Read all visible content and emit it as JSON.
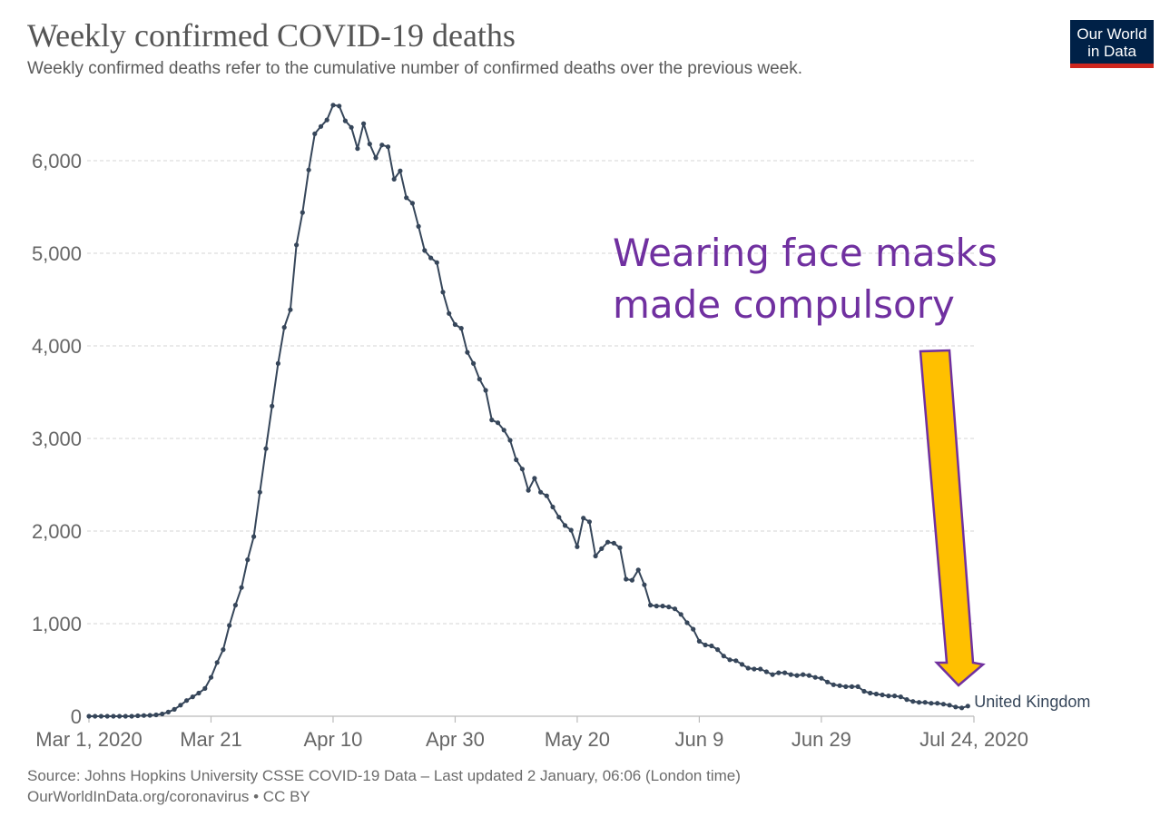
{
  "header": {
    "title": "Weekly confirmed COVID-19 deaths",
    "subtitle": "Weekly confirmed deaths refer to the cumulative number of confirmed deaths over the previous week."
  },
  "logo": {
    "line1": "Our World",
    "line2": "in Data"
  },
  "annotation": {
    "line1": "Wearing face masks",
    "line2": "made compulsory"
  },
  "footer": {
    "source": "Source: Johns Hopkins University CSSE COVID-19 Data – Last updated 2 January, 06:06 (London time)",
    "url": "OurWorldInData.org/coronavirus • CC BY"
  },
  "colors": {
    "line": "#36465a",
    "arrow_fill": "#ffc000",
    "arrow_stroke": "#7030a0",
    "annotation": "#7030a0",
    "grid": "#dddddd",
    "axis_text": "#666666"
  },
  "chart_data": {
    "type": "line",
    "title": "Weekly confirmed COVID-19 deaths",
    "xlabel": "",
    "ylabel": "",
    "ylim": [
      0,
      6600
    ],
    "yticks": [
      0,
      1000,
      2000,
      3000,
      4000,
      5000,
      6000
    ],
    "ytick_labels": [
      "0",
      "1,000",
      "2,000",
      "3,000",
      "4,000",
      "5,000",
      "6,000"
    ],
    "x_range": [
      "2020-03-01",
      "2020-07-24"
    ],
    "xticks": [
      "2020-03-01",
      "2020-03-21",
      "2020-04-10",
      "2020-04-30",
      "2020-05-20",
      "2020-06-09",
      "2020-06-29",
      "2020-07-24"
    ],
    "xtick_labels": [
      "Mar 1, 2020",
      "Mar 21",
      "Apr 10",
      "Apr 30",
      "May 20",
      "Jun 9",
      "Jun 29",
      "Jul 24, 2020"
    ],
    "grid": true,
    "series": [
      {
        "name": "United Kingdom",
        "x_start": "2020-03-01",
        "x_step_days": 1,
        "values": [
          0,
          0,
          0,
          0,
          0,
          0,
          0,
          0,
          5,
          8,
          10,
          15,
          25,
          45,
          75,
          120,
          170,
          210,
          250,
          300,
          420,
          580,
          720,
          980,
          1200,
          1390,
          1690,
          1940,
          2420,
          2890,
          3350,
          3810,
          4200,
          4390,
          5090,
          5440,
          5900,
          6290,
          6370,
          6440,
          6600,
          6590,
          6430,
          6360,
          6130,
          6400,
          6180,
          6030,
          6170,
          6150,
          5800,
          5890,
          5600,
          5540,
          5290,
          5030,
          4950,
          4900,
          4580,
          4350,
          4230,
          4190,
          3930,
          3810,
          3640,
          3520,
          3200,
          3170,
          3090,
          2980,
          2770,
          2670,
          2440,
          2570,
          2420,
          2380,
          2260,
          2150,
          2060,
          2010,
          1830,
          2140,
          2100,
          1730,
          1810,
          1880,
          1870,
          1820,
          1480,
          1470,
          1580,
          1420,
          1200,
          1190,
          1190,
          1180,
          1160,
          1100,
          1010,
          940,
          810,
          770,
          760,
          720,
          650,
          610,
          600,
          560,
          520,
          510,
          510,
          480,
          450,
          470,
          470,
          450,
          440,
          450,
          440,
          420,
          410,
          370,
          340,
          330,
          320,
          320,
          320,
          270,
          250,
          240,
          230,
          220,
          220,
          210,
          180,
          160,
          150,
          150,
          140,
          140,
          130,
          120,
          100,
          90,
          110
        ]
      }
    ]
  }
}
